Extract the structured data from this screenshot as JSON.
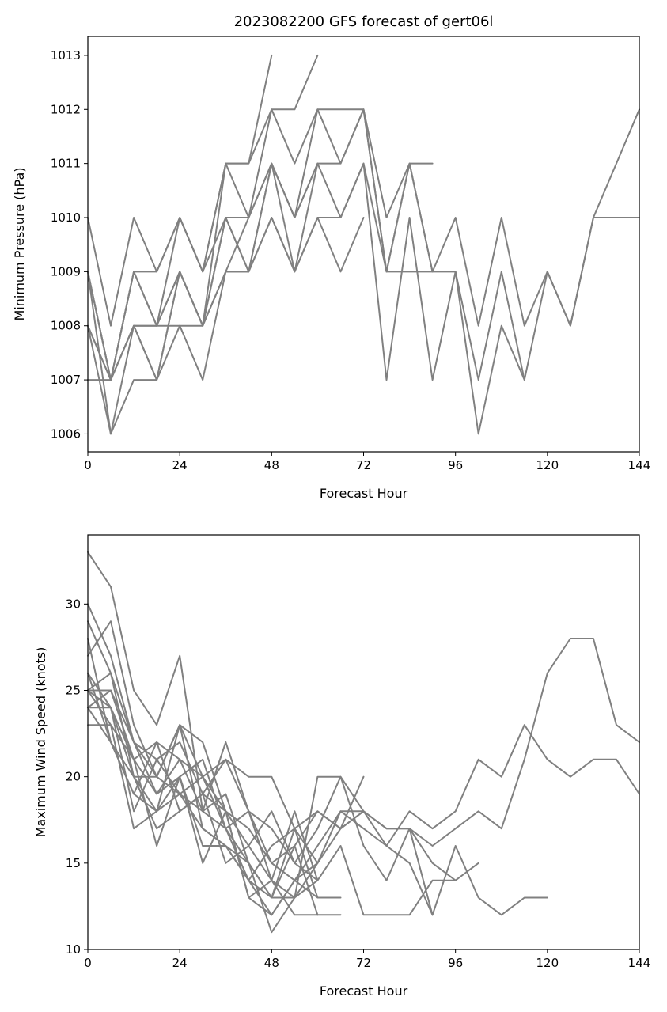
{
  "chart_data": [
    {
      "type": "line",
      "title": "2023082200 GFS forecast of gert06l",
      "xlabel": "Forecast Hour",
      "ylabel": "Minimum Pressure (hPa)",
      "xlim": [
        0,
        144
      ],
      "ylim": [
        1005.67,
        1013.35
      ],
      "xticks": [
        0,
        24,
        48,
        72,
        96,
        120,
        144
      ],
      "yticks": [
        1006,
        1007,
        1008,
        1009,
        1010,
        1011,
        1012,
        1013
      ],
      "grid": false,
      "line_color": "#808080",
      "series": [
        {
          "x": [
            0,
            6,
            12,
            18,
            24,
            30,
            36,
            42,
            48
          ],
          "y": [
            1010,
            1008,
            1010,
            1009,
            1010,
            1009,
            1011,
            1011,
            1013
          ]
        },
        {
          "x": [
            0,
            6,
            12,
            18,
            24,
            30,
            36,
            42,
            48,
            54,
            60
          ],
          "y": [
            1009,
            1007,
            1009,
            1008,
            1010,
            1009,
            1011,
            1011,
            1012,
            1012,
            1013
          ]
        },
        {
          "x": [
            0,
            6,
            12,
            18,
            24,
            30,
            36,
            42,
            48,
            54,
            60,
            66,
            72,
            78,
            84,
            90
          ],
          "y": [
            1009,
            1007,
            1009,
            1008,
            1009,
            1008,
            1011,
            1010,
            1012,
            1011,
            1012,
            1012,
            1012,
            1010,
            1011,
            1011
          ]
        },
        {
          "x": [
            0,
            6,
            12,
            18,
            24,
            30,
            36,
            42,
            48,
            54,
            60,
            66,
            72,
            78,
            84,
            90,
            96,
            102,
            108,
            114,
            120,
            126,
            132,
            138,
            144
          ],
          "y": [
            1009,
            1007,
            1009,
            1009,
            1010,
            1009,
            1010,
            1010,
            1011,
            1010,
            1012,
            1011,
            1012,
            1009,
            1011,
            1009,
            1010,
            1008,
            1010,
            1008,
            1009,
            1008,
            1010,
            1011,
            1012
          ]
        },
        {
          "x": [
            0,
            6,
            12,
            18,
            24,
            30,
            36,
            42,
            48,
            54,
            60,
            66,
            72,
            78,
            84,
            90,
            96,
            102,
            108,
            114,
            120,
            126,
            132,
            138,
            144
          ],
          "y": [
            1008,
            1006,
            1008,
            1008,
            1009,
            1008,
            1010,
            1009,
            1011,
            1010,
            1011,
            1011,
            1012,
            1009,
            1011,
            1009,
            1009,
            1007,
            1009,
            1007,
            1009,
            1008,
            1010,
            1010,
            1010
          ]
        },
        {
          "x": [
            0,
            6,
            12,
            18,
            24,
            30,
            36,
            42,
            48,
            54,
            60,
            66,
            72,
            78,
            84,
            90,
            96,
            102,
            108,
            114
          ],
          "y": [
            1008,
            1007,
            1008,
            1007,
            1009,
            1008,
            1010,
            1009,
            1011,
            1009,
            1011,
            1010,
            1011,
            1007,
            1010,
            1007,
            1009,
            1006,
            1008,
            1007
          ]
        },
        {
          "x": [
            0,
            6,
            12,
            18,
            24,
            30,
            36,
            42,
            48,
            54,
            60,
            66,
            72,
            78,
            84,
            90
          ],
          "y": [
            1007,
            1007,
            1008,
            1008,
            1008,
            1008,
            1009,
            1009,
            1010,
            1009,
            1010,
            1010,
            1011,
            1009,
            1009,
            1009
          ]
        },
        {
          "x": [
            0,
            6,
            12,
            18,
            24,
            30,
            36,
            42,
            48,
            54,
            60,
            66,
            72
          ],
          "y": [
            1009,
            1006,
            1007,
            1007,
            1008,
            1007,
            1009,
            1009,
            1010,
            1009,
            1010,
            1009,
            1010
          ]
        },
        {
          "x": [
            0,
            6,
            12,
            18,
            24,
            30,
            36,
            42,
            48,
            54,
            60
          ],
          "y": [
            1008,
            1007,
            1008,
            1007,
            1009,
            1008,
            1009,
            1010,
            1011,
            1010,
            1011
          ]
        }
      ]
    },
    {
      "type": "line",
      "title": "",
      "xlabel": "Forecast Hour",
      "ylabel": "Maximum Wind Speed (knots)",
      "xlim": [
        0,
        144
      ],
      "ylim": [
        10,
        34
      ],
      "xticks": [
        0,
        24,
        48,
        72,
        96,
        120,
        144
      ],
      "yticks": [
        10,
        15,
        20,
        25,
        30
      ],
      "grid": false,
      "line_color": "#808080",
      "series": [
        {
          "x": [
            0,
            6,
            12,
            18,
            24,
            30,
            36,
            42,
            48,
            54,
            60,
            66,
            72,
            78,
            84,
            90,
            96,
            102,
            108,
            114,
            120,
            126,
            132,
            138,
            144
          ],
          "y": [
            33,
            31,
            25,
            23,
            27,
            18,
            22,
            18,
            15,
            14,
            16,
            18,
            18,
            17,
            17,
            16,
            17,
            18,
            17,
            21,
            26,
            28,
            28,
            23,
            22
          ]
        },
        {
          "x": [
            0,
            6,
            12,
            18,
            24,
            30,
            36,
            42,
            48,
            54,
            60,
            66,
            72,
            78,
            84,
            90,
            96,
            102,
            108,
            114,
            120,
            126,
            132,
            138,
            144
          ],
          "y": [
            30,
            27,
            22,
            20,
            23,
            20,
            21,
            20,
            20,
            17,
            18,
            17,
            18,
            16,
            18,
            17,
            18,
            21,
            20,
            23,
            21,
            20,
            21,
            21,
            19
          ]
        },
        {
          "x": [
            0,
            6,
            12,
            18,
            24,
            30,
            36,
            42,
            48,
            54,
            60,
            66,
            72,
            78,
            84,
            90,
            96,
            102,
            108,
            114,
            120
          ],
          "y": [
            29,
            26,
            22,
            21,
            22,
            19,
            21,
            18,
            17,
            15,
            17,
            20,
            16,
            14,
            17,
            12,
            16,
            13,
            12,
            13,
            13
          ]
        },
        {
          "x": [
            0,
            6,
            12,
            18,
            24,
            30,
            36,
            42,
            48,
            54,
            60,
            66,
            72,
            78,
            84,
            90,
            96,
            102
          ],
          "y": [
            27,
            29,
            23,
            20,
            23,
            22,
            18,
            17,
            15,
            16,
            18,
            17,
            18,
            17,
            17,
            15,
            14,
            15
          ]
        },
        {
          "x": [
            0,
            6,
            12,
            18,
            24,
            30,
            36,
            42,
            48,
            54,
            60,
            66,
            72,
            78,
            84,
            90,
            96
          ],
          "y": [
            26,
            24,
            21,
            22,
            21,
            20,
            18,
            16,
            18,
            15,
            14,
            16,
            12,
            12,
            12,
            14,
            14
          ]
        },
        {
          "x": [
            0,
            6,
            12,
            18,
            24,
            30,
            36,
            42,
            48,
            54,
            60,
            66,
            72,
            78,
            84,
            90
          ],
          "y": [
            25,
            25,
            22,
            19,
            20,
            21,
            17,
            18,
            14,
            13,
            15,
            18,
            17,
            16,
            15,
            12
          ]
        },
        {
          "x": [
            0,
            6,
            12,
            18,
            24,
            30,
            36,
            42,
            48,
            54,
            60,
            66,
            72
          ],
          "y": [
            24,
            24,
            20,
            20,
            19,
            18,
            19,
            15,
            11,
            13,
            20,
            20,
            18
          ]
        },
        {
          "x": [
            0,
            6,
            12,
            18,
            24,
            30,
            36,
            42,
            48,
            54,
            60,
            66
          ],
          "y": [
            23,
            23,
            17,
            18,
            23,
            17,
            16,
            14,
            12,
            14,
            13,
            13
          ]
        },
        {
          "x": [
            0,
            6,
            12,
            18,
            24,
            30,
            36,
            42,
            48,
            54,
            60,
            66
          ],
          "y": [
            25,
            26,
            20,
            17,
            18,
            19,
            18,
            13,
            14,
            12,
            12,
            12
          ]
        },
        {
          "x": [
            0,
            6,
            12,
            18,
            24,
            30,
            36,
            42,
            48,
            54,
            60
          ],
          "y": [
            24,
            22,
            19,
            18,
            20,
            16,
            16,
            15,
            13,
            13,
            14
          ]
        },
        {
          "x": [
            0,
            6,
            12,
            18,
            24,
            30,
            36,
            42,
            48,
            54,
            60
          ],
          "y": [
            26,
            22,
            20,
            18,
            19,
            17,
            16,
            14,
            13,
            16,
            12
          ]
        },
        {
          "x": [
            0,
            6,
            12,
            18,
            24,
            30,
            36,
            42,
            48,
            54,
            60
          ],
          "y": [
            25,
            23,
            21,
            19,
            21,
            18,
            17,
            14,
            16,
            17,
            13
          ]
        },
        {
          "x": [
            0,
            6,
            12,
            18,
            24,
            30,
            36,
            42,
            48,
            54,
            60
          ],
          "y": [
            28,
            22,
            19,
            22,
            18,
            19,
            15,
            16,
            14,
            18,
            14
          ]
        },
        {
          "x": [
            0,
            6,
            12,
            18,
            24,
            30,
            36,
            42,
            48,
            54,
            60
          ],
          "y": [
            24,
            25,
            21,
            16,
            20,
            15,
            18,
            13,
            12,
            14,
            15
          ]
        },
        {
          "x": [
            0,
            6,
            12,
            18,
            24,
            30,
            36,
            42,
            48,
            54,
            60,
            66,
            72
          ],
          "y": [
            25,
            24,
            18,
            21,
            19,
            20,
            17,
            15,
            13,
            17,
            15,
            17,
            20
          ]
        }
      ]
    }
  ]
}
